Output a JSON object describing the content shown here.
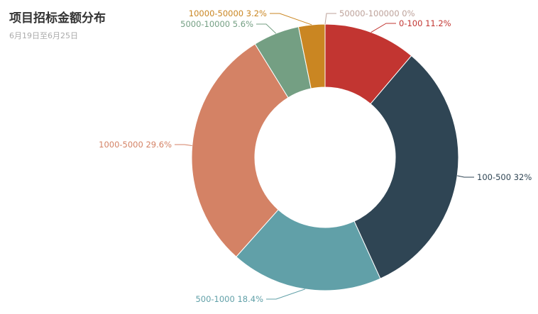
{
  "title": "项目招标金额分布",
  "subtitle": "6月19日至6月25日",
  "chart_data": {
    "type": "pie",
    "variant": "donut",
    "title": "项目招标金额分布",
    "subtitle": "6月19日至6月25日",
    "start_angle_deg": 90,
    "direction": "clockwise",
    "slices": [
      {
        "label": "0-100",
        "value": 11.2,
        "display": "0-100 11.2%",
        "color": "#c23531"
      },
      {
        "label": "100-500",
        "value": 32,
        "display": "100-500 32%",
        "color": "#2f4554"
      },
      {
        "label": "500-1000",
        "value": 18.4,
        "display": "500-1000 18.4%",
        "color": "#61a0a8"
      },
      {
        "label": "1000-5000",
        "value": 29.6,
        "display": "1000-5000 29.6%",
        "color": "#d48265"
      },
      {
        "label": "5000-10000",
        "value": 5.6,
        "display": "5000-10000 5.6%",
        "color": "#749f83"
      },
      {
        "label": "10000-50000",
        "value": 3.2,
        "display": "10000-50000 3.2%",
        "color": "#ca8622"
      },
      {
        "label": "50000-100000",
        "value": 0,
        "display": "50000-100000 0%",
        "color": "#bda29a"
      }
    ]
  }
}
